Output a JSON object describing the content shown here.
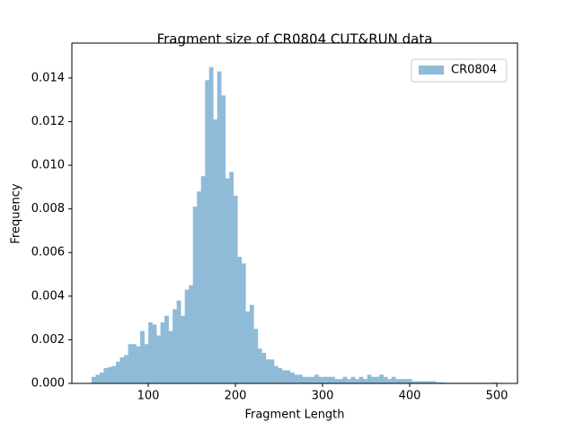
{
  "chart_data": {
    "type": "histogram",
    "title": "Fragment size of CR0804 CUT&RUN data",
    "x_label": "Fragment Length",
    "y_label": "Frequency",
    "series": [
      {
        "name": "CR0804",
        "color": "#8fbbd9",
        "bins": [
          35,
          39.65,
          44.3,
          48.95,
          53.6,
          58.25,
          62.9,
          67.55,
          72.2,
          76.85,
          81.5,
          86.15,
          90.8,
          95.45,
          100.1,
          104.75,
          109.4,
          114.05,
          118.7,
          123.35,
          128,
          132.65,
          137.3,
          141.95,
          146.6,
          151.25,
          155.9,
          160.55,
          165.2,
          169.85,
          174.5,
          179.15,
          183.8,
          188.45,
          193.1,
          197.75,
          202.4,
          207.05,
          211.7,
          216.35,
          221,
          225.65,
          230.3,
          234.95,
          239.6,
          244.25,
          248.9,
          253.55,
          258.2,
          262.85,
          267.5,
          272.15,
          276.8,
          281.45,
          286.1,
          290.75,
          295.4,
          300.05,
          304.7,
          309.35,
          314,
          318.65,
          323.3,
          327.95,
          332.6,
          337.25,
          341.9,
          346.55,
          351.2,
          355.85,
          360.5,
          365.15,
          369.8,
          374.45,
          379.1,
          383.75,
          388.4,
          393.05,
          397.7,
          402.35,
          407,
          411.65,
          416.3,
          420.95,
          425.6,
          430.25,
          434.9,
          439.55,
          444.2,
          448.85,
          453.5,
          458.15,
          462.8,
          467.45,
          472.1,
          476.75,
          481.4,
          486.05,
          490.7,
          495.35,
          500
        ],
        "counts": [
          0.0003,
          0.0004,
          0.0005,
          0.0007,
          0.00075,
          0.0008,
          0.001,
          0.0012,
          0.0013,
          0.0018,
          0.0018,
          0.0017,
          0.0024,
          0.0018,
          0.0028,
          0.0027,
          0.0022,
          0.0028,
          0.0031,
          0.0024,
          0.0034,
          0.0038,
          0.0031,
          0.0043,
          0.0045,
          0.0081,
          0.0088,
          0.0095,
          0.0139,
          0.0145,
          0.0121,
          0.0143,
          0.0132,
          0.0094,
          0.0097,
          0.0086,
          0.0058,
          0.0055,
          0.0033,
          0.0036,
          0.0025,
          0.0016,
          0.0014,
          0.0011,
          0.0011,
          0.0008,
          0.0007,
          0.0006,
          0.0006,
          0.0005,
          0.0004,
          0.0004,
          0.0003,
          0.0003,
          0.0003,
          0.0004,
          0.0003,
          0.0003,
          0.0003,
          0.0003,
          0.0002,
          0.0002,
          0.0003,
          0.0002,
          0.0003,
          0.0002,
          0.0003,
          0.0002,
          0.0004,
          0.0003,
          0.0003,
          0.0004,
          0.0003,
          0.0002,
          0.0003,
          0.0002,
          0.0002,
          0.0002,
          0.0002,
          0.0001,
          0.0001,
          0.0001,
          0.0001,
          0.0001,
          0.0001,
          5e-05,
          5e-05,
          3e-05,
          3e-05,
          3e-05,
          3e-05,
          3e-05,
          3e-05,
          3e-05,
          3e-05,
          3e-05,
          3e-05,
          3e-05,
          3e-05,
          5e-05
        ]
      }
    ],
    "xlim": [
      12.4,
      523.7
    ],
    "xticks": [
      100,
      200,
      300,
      400,
      500
    ],
    "ylim": [
      0,
      0.0156
    ],
    "yticks": [
      {
        "value": 0,
        "label": "0.000"
      },
      {
        "value": 0.002,
        "label": "0.002"
      },
      {
        "value": 0.004,
        "label": "0.004"
      },
      {
        "value": 0.006,
        "label": "0.006"
      },
      {
        "value": 0.008,
        "label": "0.008"
      },
      {
        "value": 0.01,
        "label": "0.010"
      },
      {
        "value": 0.012,
        "label": "0.012"
      },
      {
        "value": 0.014,
        "label": "0.014"
      }
    ],
    "legend": "upper right",
    "grid": false
  }
}
